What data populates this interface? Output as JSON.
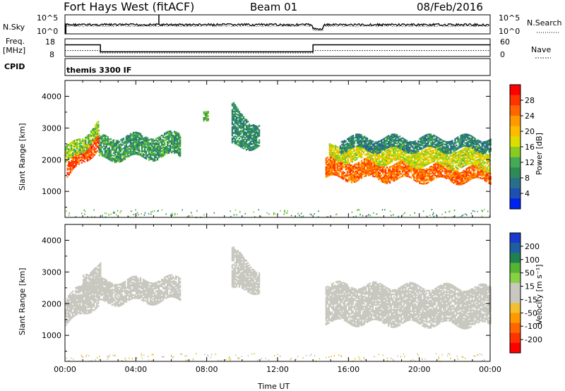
{
  "header": {
    "station": "Fort Hays West (fitACF)",
    "beam": "Beam 01",
    "date": "08/Feb/2016"
  },
  "top_panels": {
    "nsky_label": "N.Sky",
    "nsearch_label": "N.Search",
    "nsky_ticks": [
      "10^5",
      "10^0"
    ],
    "nsearch_ticks": [
      "10^5",
      "10^0"
    ],
    "freq_label": "Freq.",
    "freq_unit": "[MHz]",
    "freq_ticks": [
      "18",
      "8"
    ],
    "nave_label": "Nave",
    "nave_ticks": [
      "60",
      "0"
    ],
    "cpid_label": "CPID",
    "cpid_value": "themis 3300 IF",
    "freq_series": {
      "times_h": [
        0,
        2,
        2,
        14,
        14,
        24
      ],
      "values_mhz": [
        15.5,
        15.5,
        11,
        11,
        15.5,
        15.5
      ]
    },
    "nave_series": {
      "times_h": [
        0,
        2,
        2,
        14,
        14,
        24
      ],
      "values": [
        20,
        20,
        12,
        12,
        20,
        20
      ]
    }
  },
  "power_panel": {
    "ylabel": "Slant Range [km]",
    "colorbar_label": "Power [dB]",
    "colorbar_ticks": [
      "28",
      "24",
      "20",
      "16",
      "12",
      "8",
      "4"
    ],
    "colorbar_colors": [
      "#ff0000",
      "#ff3300",
      "#ff6600",
      "#ff9900",
      "#ffbb00",
      "#dddd00",
      "#88cc22",
      "#44aa55",
      "#2e8b57",
      "#2a6f8a",
      "#1f4fb0",
      "#0022ee"
    ]
  },
  "velocity_panel": {
    "ylabel": "Slant Range [km]",
    "colorbar_label": "Velocity [m s⁻¹]",
    "colorbar_ticks": [
      "200",
      "100",
      "50",
      "15",
      "-15",
      "-50",
      "-100",
      "-200"
    ],
    "colorbar_colors": [
      "#1a3acc",
      "#1f5fa0",
      "#1f8050",
      "#55b533",
      "#88d044",
      "#c8c8c0",
      "#c8c8c0",
      "#f0c030",
      "#ff9900",
      "#ff6600",
      "#ff3300",
      "#ff0000"
    ]
  },
  "x_axis": {
    "label": "Time UT",
    "ticks": [
      "00:00",
      "04:00",
      "08:00",
      "12:00",
      "16:00",
      "20:00",
      "00:00"
    ]
  },
  "chart_data": {
    "type": "heatmap",
    "title": "Fort Hays West (fitACF)",
    "xlabel": "Time UT",
    "ylabel": "Slant Range [km]",
    "xlim_hours": [
      0,
      24
    ],
    "ylim_km": [
      180,
      4500
    ],
    "y_ticks": [
      1000,
      2000,
      3000,
      4000
    ],
    "power_scatter_bands": [
      {
        "t0": 0.1,
        "t1": 1.9,
        "r0_lo": 1400,
        "r0_hi": 1800,
        "r1_lo": 2400,
        "r1_hi": 3000,
        "power_db": 28
      },
      {
        "t0": 0.0,
        "t1": 1.9,
        "r0_lo": 1800,
        "r0_hi": 2300,
        "r1_lo": 2800,
        "r1_hi": 3200,
        "power_db": 14
      },
      {
        "t0": 1.9,
        "t1": 6.5,
        "r0_lo": 2000,
        "r0_hi": 2700,
        "r1_lo": 2100,
        "r1_hi": 2800,
        "power_db": 10
      },
      {
        "t0": 7.8,
        "t1": 8.1,
        "r0_lo": 3100,
        "r0_hi": 3400,
        "r1_lo": 3200,
        "r1_hi": 3500,
        "power_db": 12
      },
      {
        "t0": 9.4,
        "t1": 11.0,
        "r0_lo": 2400,
        "r0_hi": 3700,
        "r1_lo": 2400,
        "r1_hi": 3000,
        "power_db": 9
      },
      {
        "t0": 14.7,
        "t1": 24,
        "r0_lo": 1400,
        "r0_hi": 2000,
        "r1_lo": 1300,
        "r1_hi": 1700,
        "power_db": 26
      },
      {
        "t0": 14.9,
        "t1": 24,
        "r0_lo": 2000,
        "r0_hi": 2400,
        "r1_lo": 1700,
        "r1_hi": 2300,
        "power_db": 17
      },
      {
        "t0": 15.5,
        "t1": 24,
        "r0_lo": 2300,
        "r0_hi": 2700,
        "r1_lo": 2300,
        "r1_hi": 2700,
        "power_db": 8
      }
    ],
    "velocity_scatter_bands": [
      {
        "t0": 0.0,
        "t1": 1.9,
        "r0_lo": 1300,
        "r0_hi": 2100,
        "r1_lo": 2000,
        "r1_hi": 3000,
        "velocity_ms": 0
      },
      {
        "t0": 1.0,
        "t1": 2.0,
        "r0_lo": 2300,
        "r0_hi": 3000,
        "r1_lo": 2600,
        "r1_hi": 3200,
        "velocity_ms": -30
      },
      {
        "t0": 1.9,
        "t1": 6.5,
        "r0_lo": 2000,
        "r0_hi": 2700,
        "r1_lo": 2100,
        "r1_hi": 2800,
        "velocity_ms": 0
      },
      {
        "t0": 9.4,
        "t1": 11.0,
        "r0_lo": 2400,
        "r0_hi": 3700,
        "r1_lo": 2400,
        "r1_hi": 3000,
        "velocity_ms": 0
      },
      {
        "t0": 14.7,
        "t1": 24,
        "r0_lo": 1400,
        "r0_hi": 2600,
        "r1_lo": 1300,
        "r1_hi": 2500,
        "velocity_ms": 0
      }
    ]
  }
}
